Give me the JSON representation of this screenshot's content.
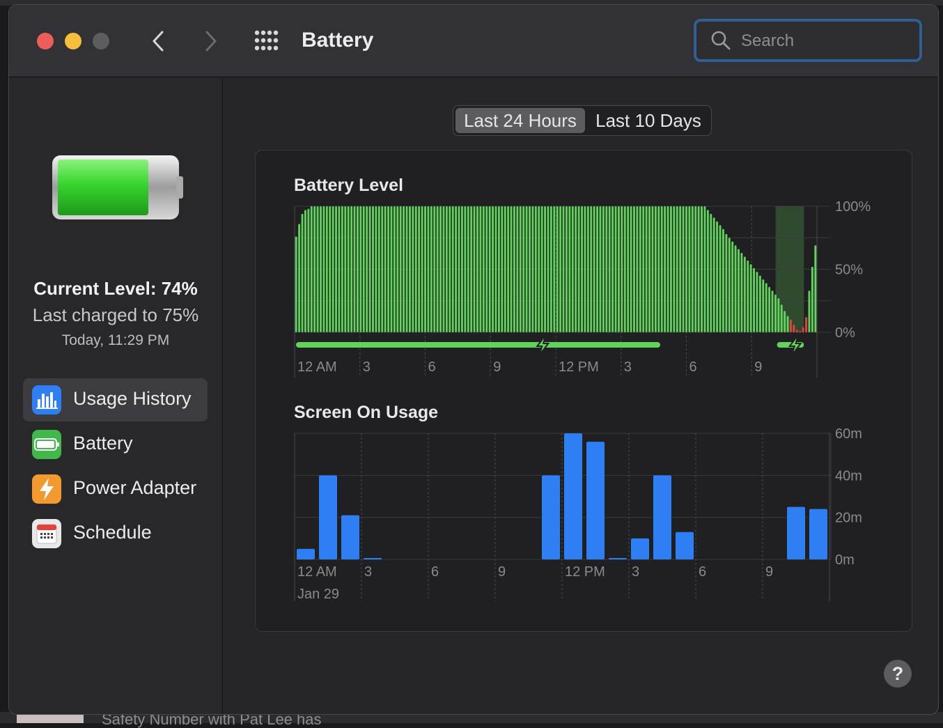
{
  "backdrop": {
    "bottom_text": "Safety Number with Pat Lee has"
  },
  "window": {
    "title": "Battery"
  },
  "search": {
    "placeholder": "Search"
  },
  "sidebar": {
    "current_level": "Current Level: 74%",
    "last_charged": "Last charged to 75%",
    "charged_time": "Today, 11:29 PM",
    "items": [
      {
        "label": "Usage History",
        "icon": "bar-chart-icon",
        "color": "#2f7ff4",
        "active": true
      },
      {
        "label": "Battery",
        "icon": "battery-icon",
        "color": "#41b84a",
        "active": false
      },
      {
        "label": "Power Adapter",
        "icon": "lightning-bolt-icon",
        "color": "#f29a2e",
        "active": false
      },
      {
        "label": "Schedule",
        "icon": "calendar-icon",
        "color": "#e8e8e8",
        "active": false
      }
    ]
  },
  "tabs": [
    {
      "label": "Last 24 Hours",
      "selected": true
    },
    {
      "label": "Last 10 Days",
      "selected": false
    }
  ],
  "help": {
    "label": "?"
  },
  "colors": {
    "battery_bar": "#5fd35a",
    "battery_low": "#e0443c",
    "charging": "#5fd35a",
    "usage_bar": "#2f7ff4"
  },
  "chart_data": [
    {
      "type": "bar",
      "title": "Battery Level",
      "unit": "%",
      "ylim": [
        0,
        100
      ],
      "y_ticks": [
        "100%",
        "50%",
        "0%"
      ],
      "x_tick_labels": [
        "12 AM",
        "3",
        "6",
        "9",
        "12 PM",
        "3",
        "6",
        "9"
      ],
      "values": [
        76,
        86,
        94,
        97,
        98,
        100,
        100,
        100,
        100,
        100,
        100,
        100,
        100,
        100,
        100,
        100,
        100,
        100,
        100,
        100,
        100,
        100,
        100,
        100,
        100,
        100,
        100,
        100,
        100,
        100,
        100,
        100,
        100,
        100,
        100,
        100,
        100,
        100,
        100,
        100,
        100,
        100,
        100,
        100,
        100,
        100,
        100,
        100,
        100,
        100,
        100,
        100,
        100,
        100,
        100,
        100,
        100,
        100,
        100,
        100,
        100,
        100,
        100,
        100,
        100,
        100,
        100,
        100,
        100,
        100,
        100,
        100,
        100,
        100,
        100,
        100,
        100,
        100,
        100,
        100,
        100,
        100,
        100,
        100,
        100,
        100,
        100,
        100,
        100,
        100,
        100,
        100,
        100,
        100,
        100,
        100,
        100,
        100,
        100,
        100,
        100,
        100,
        100,
        100,
        100,
        100,
        100,
        100,
        100,
        100,
        100,
        100,
        100,
        100,
        100,
        100,
        100,
        100,
        100,
        100,
        100,
        100,
        100,
        100,
        100,
        100,
        100,
        100,
        100,
        100,
        100,
        100,
        100,
        100,
        97,
        94,
        91,
        88,
        85,
        82,
        78,
        75,
        72,
        69,
        66,
        63,
        60,
        57,
        54,
        51,
        48,
        45,
        42,
        39,
        36,
        33,
        30,
        27,
        22,
        17,
        13,
        10,
        6,
        2,
        1,
        4,
        12,
        33,
        52,
        69
      ],
      "low_threshold": 12,
      "charging_periods": [
        {
          "start_hour": 0,
          "end_hour": 16.8
        },
        {
          "start_hour": 22.1,
          "end_hour": 23.4
        }
      ]
    },
    {
      "type": "bar",
      "title": "Screen On Usage",
      "unit": "m",
      "ylim": [
        0,
        60
      ],
      "y_ticks": [
        "60m",
        "40m",
        "20m",
        "0m"
      ],
      "categories": [
        "0",
        "1",
        "2",
        "3",
        "4",
        "5",
        "6",
        "7",
        "8",
        "9",
        "10",
        "11",
        "12",
        "13",
        "14",
        "15",
        "16",
        "17",
        "18",
        "19",
        "20",
        "21",
        "22",
        "23"
      ],
      "values": [
        5,
        40,
        21,
        0.5,
        0,
        0,
        0,
        0,
        0,
        0,
        0,
        40,
        60,
        56,
        0.5,
        10,
        40,
        13,
        0,
        0,
        0,
        0,
        25,
        24
      ],
      "x_tick_labels": [
        "12 AM",
        "3",
        "6",
        "9",
        "12 PM",
        "3",
        "6",
        "9"
      ],
      "date_label": "Jan 29"
    }
  ]
}
